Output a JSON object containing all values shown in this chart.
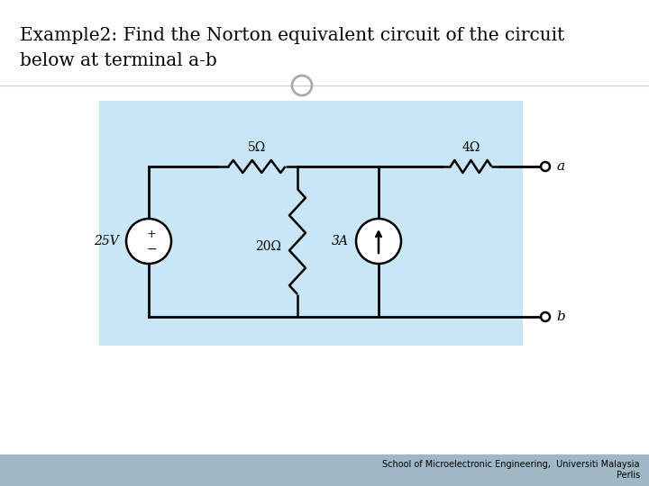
{
  "title_line1": "Example2: Find the Norton equivalent circuit of the circuit",
  "title_line2": "below at terminal a-b",
  "footer": "School of Microelectronic Engineering,  Universiti Malaysia\nPerlis",
  "bg_color": "#ffffff",
  "panel_color": "#c8e6f5",
  "title_fontsize": 14.5,
  "footer_fontsize": 7,
  "resistor_5": "5Ω",
  "resistor_4": "4Ω",
  "resistor_20": "20Ω",
  "voltage_src": "25V",
  "current_src": "3A",
  "terminal_a": "a",
  "terminal_b": "b",
  "footer_bg": "#9eb8c4"
}
